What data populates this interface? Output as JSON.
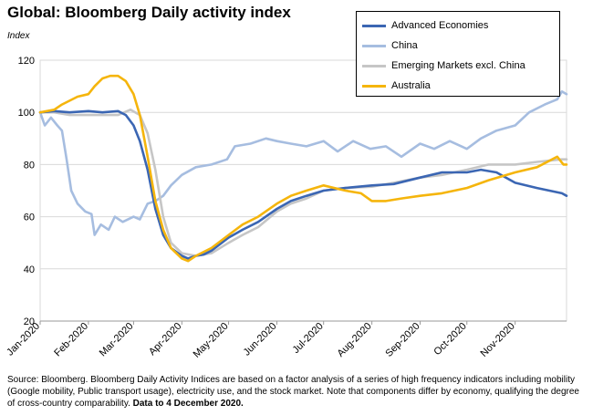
{
  "title": "Global: Bloomberg Daily activity index",
  "ylabel": "Index",
  "source_note": {
    "text": "Source: Bloomberg.   Bloomberg Daily Activity Indices are based on a factor analysis of a series of high frequency indicators including mobility (Google mobility, Public transport usage), electricity use, and the stock market.  Note that components differ by economy, qualifying the degree of cross-country comparability.",
    "emphasis": "Data to 4 December 2020."
  },
  "chart_data": {
    "type": "line",
    "title": "Global: Bloomberg Daily activity index",
    "ylabel": "Index",
    "xlabel": "",
    "ylim": [
      20,
      120
    ],
    "xlim": [
      "2020-01-01",
      "2020-12-04"
    ],
    "yticks": [
      20,
      40,
      60,
      80,
      100,
      120
    ],
    "xticks": [
      "Jan-2020",
      "Feb-2020",
      "Mar-2020",
      "Apr-2020",
      "May-2020",
      "Jun-2020",
      "Jul-2020",
      "Aug-2020",
      "Sep-2020",
      "Oct-2020",
      "Nov-2020"
    ],
    "xtick_dates": [
      "2020-01-01",
      "2020-02-01",
      "2020-03-01",
      "2020-04-01",
      "2020-05-01",
      "2020-06-01",
      "2020-07-01",
      "2020-08-01",
      "2020-09-01",
      "2020-10-01",
      "2020-11-01"
    ],
    "grid": "horizontal",
    "legend_position": "top-right",
    "series": [
      {
        "name": "Advanced Economies",
        "color": "#3b66b3",
        "points": [
          [
            "2020-01-01",
            100
          ],
          [
            "2020-01-10",
            100.5
          ],
          [
            "2020-01-20",
            100
          ],
          [
            "2020-02-01",
            100.5
          ],
          [
            "2020-02-10",
            100
          ],
          [
            "2020-02-20",
            100.5
          ],
          [
            "2020-02-25",
            99
          ],
          [
            "2020-03-01",
            95
          ],
          [
            "2020-03-05",
            89
          ],
          [
            "2020-03-10",
            78
          ],
          [
            "2020-03-15",
            63
          ],
          [
            "2020-03-20",
            53
          ],
          [
            "2020-03-25",
            48
          ],
          [
            "2020-04-01",
            45
          ],
          [
            "2020-04-05",
            44
          ],
          [
            "2020-04-10",
            45
          ],
          [
            "2020-04-15",
            45.5
          ],
          [
            "2020-04-20",
            47
          ],
          [
            "2020-05-01",
            52
          ],
          [
            "2020-05-10",
            55
          ],
          [
            "2020-05-20",
            58
          ],
          [
            "2020-06-01",
            63
          ],
          [
            "2020-06-10",
            66
          ],
          [
            "2020-06-20",
            68
          ],
          [
            "2020-07-01",
            70
          ],
          [
            "2020-07-15",
            71
          ],
          [
            "2020-08-01",
            72
          ],
          [
            "2020-08-15",
            72.5
          ],
          [
            "2020-09-01",
            75
          ],
          [
            "2020-09-15",
            77
          ],
          [
            "2020-10-01",
            77
          ],
          [
            "2020-10-10",
            78
          ],
          [
            "2020-10-20",
            77
          ],
          [
            "2020-11-01",
            73
          ],
          [
            "2020-11-15",
            71
          ],
          [
            "2020-12-01",
            69
          ],
          [
            "2020-12-04",
            68
          ]
        ]
      },
      {
        "name": "China",
        "color": "#a6bde0",
        "points": [
          [
            "2020-01-01",
            100
          ],
          [
            "2020-01-04",
            95
          ],
          [
            "2020-01-08",
            98
          ],
          [
            "2020-01-12",
            95
          ],
          [
            "2020-01-15",
            93
          ],
          [
            "2020-01-18",
            82
          ],
          [
            "2020-01-21",
            70
          ],
          [
            "2020-01-25",
            65
          ],
          [
            "2020-01-30",
            62
          ],
          [
            "2020-02-03",
            61
          ],
          [
            "2020-02-05",
            53
          ],
          [
            "2020-02-09",
            57
          ],
          [
            "2020-02-14",
            55
          ],
          [
            "2020-02-18",
            60
          ],
          [
            "2020-02-23",
            58
          ],
          [
            "2020-03-01",
            60
          ],
          [
            "2020-03-05",
            59
          ],
          [
            "2020-03-10",
            65
          ],
          [
            "2020-03-15",
            66
          ],
          [
            "2020-03-20",
            68
          ],
          [
            "2020-03-25",
            72
          ],
          [
            "2020-04-01",
            76
          ],
          [
            "2020-04-10",
            79
          ],
          [
            "2020-04-20",
            80
          ],
          [
            "2020-04-30",
            82
          ],
          [
            "2020-05-05",
            87
          ],
          [
            "2020-05-15",
            88
          ],
          [
            "2020-05-25",
            90
          ],
          [
            "2020-06-01",
            89
          ],
          [
            "2020-06-10",
            88
          ],
          [
            "2020-06-20",
            87
          ],
          [
            "2020-07-01",
            89
          ],
          [
            "2020-07-10",
            85
          ],
          [
            "2020-07-20",
            89
          ],
          [
            "2020-07-31",
            86
          ],
          [
            "2020-08-10",
            87
          ],
          [
            "2020-08-20",
            83
          ],
          [
            "2020-09-01",
            88
          ],
          [
            "2020-09-10",
            86
          ],
          [
            "2020-09-20",
            89
          ],
          [
            "2020-10-01",
            86
          ],
          [
            "2020-10-10",
            90
          ],
          [
            "2020-10-20",
            93
          ],
          [
            "2020-11-01",
            95
          ],
          [
            "2020-11-10",
            100
          ],
          [
            "2020-11-20",
            103
          ],
          [
            "2020-11-28",
            105
          ],
          [
            "2020-12-01",
            108
          ],
          [
            "2020-12-04",
            107
          ]
        ]
      },
      {
        "name": "Emerging Markets excl. China",
        "color": "#c6c6c6",
        "points": [
          [
            "2020-01-01",
            100
          ],
          [
            "2020-01-10",
            100
          ],
          [
            "2020-01-20",
            99
          ],
          [
            "2020-02-01",
            99
          ],
          [
            "2020-02-10",
            99
          ],
          [
            "2020-02-20",
            99
          ],
          [
            "2020-02-28",
            101
          ],
          [
            "2020-03-05",
            99
          ],
          [
            "2020-03-10",
            92
          ],
          [
            "2020-03-15",
            78
          ],
          [
            "2020-03-20",
            60
          ],
          [
            "2020-03-25",
            50
          ],
          [
            "2020-04-01",
            46
          ],
          [
            "2020-04-10",
            45
          ],
          [
            "2020-04-20",
            46
          ],
          [
            "2020-05-01",
            50
          ],
          [
            "2020-05-10",
            53
          ],
          [
            "2020-05-20",
            56
          ],
          [
            "2020-06-01",
            62
          ],
          [
            "2020-06-10",
            65
          ],
          [
            "2020-06-20",
            67
          ],
          [
            "2020-07-01",
            70
          ],
          [
            "2020-07-15",
            71
          ],
          [
            "2020-08-01",
            71.5
          ],
          [
            "2020-08-15",
            73
          ],
          [
            "2020-09-01",
            75
          ],
          [
            "2020-09-15",
            76
          ],
          [
            "2020-10-01",
            78
          ],
          [
            "2020-10-15",
            80
          ],
          [
            "2020-11-01",
            80
          ],
          [
            "2020-11-15",
            81
          ],
          [
            "2020-12-01",
            82
          ],
          [
            "2020-12-04",
            82
          ]
        ]
      },
      {
        "name": "Australia",
        "color": "#f5b50c",
        "points": [
          [
            "2020-01-01",
            100
          ],
          [
            "2020-01-10",
            101
          ],
          [
            "2020-01-15",
            103
          ],
          [
            "2020-01-25",
            106
          ],
          [
            "2020-02-01",
            107
          ],
          [
            "2020-02-05",
            110
          ],
          [
            "2020-02-10",
            113
          ],
          [
            "2020-02-15",
            114
          ],
          [
            "2020-02-20",
            114
          ],
          [
            "2020-02-25",
            112
          ],
          [
            "2020-03-01",
            107
          ],
          [
            "2020-03-05",
            99
          ],
          [
            "2020-03-10",
            83
          ],
          [
            "2020-03-15",
            66
          ],
          [
            "2020-03-20",
            55
          ],
          [
            "2020-03-25",
            48
          ],
          [
            "2020-04-01",
            44
          ],
          [
            "2020-04-05",
            43
          ],
          [
            "2020-04-10",
            45
          ],
          [
            "2020-04-20",
            48
          ],
          [
            "2020-05-01",
            53
          ],
          [
            "2020-05-10",
            57
          ],
          [
            "2020-05-20",
            60
          ],
          [
            "2020-06-01",
            65
          ],
          [
            "2020-06-10",
            68
          ],
          [
            "2020-06-20",
            70
          ],
          [
            "2020-07-01",
            72
          ],
          [
            "2020-07-15",
            70
          ],
          [
            "2020-07-25",
            69
          ],
          [
            "2020-08-01",
            66
          ],
          [
            "2020-08-10",
            66
          ],
          [
            "2020-08-20",
            67
          ],
          [
            "2020-09-01",
            68
          ],
          [
            "2020-09-15",
            69
          ],
          [
            "2020-10-01",
            71
          ],
          [
            "2020-10-15",
            74
          ],
          [
            "2020-11-01",
            77
          ],
          [
            "2020-11-15",
            79
          ],
          [
            "2020-11-28",
            83
          ],
          [
            "2020-12-02",
            80
          ],
          [
            "2020-12-04",
            80
          ]
        ]
      }
    ]
  }
}
